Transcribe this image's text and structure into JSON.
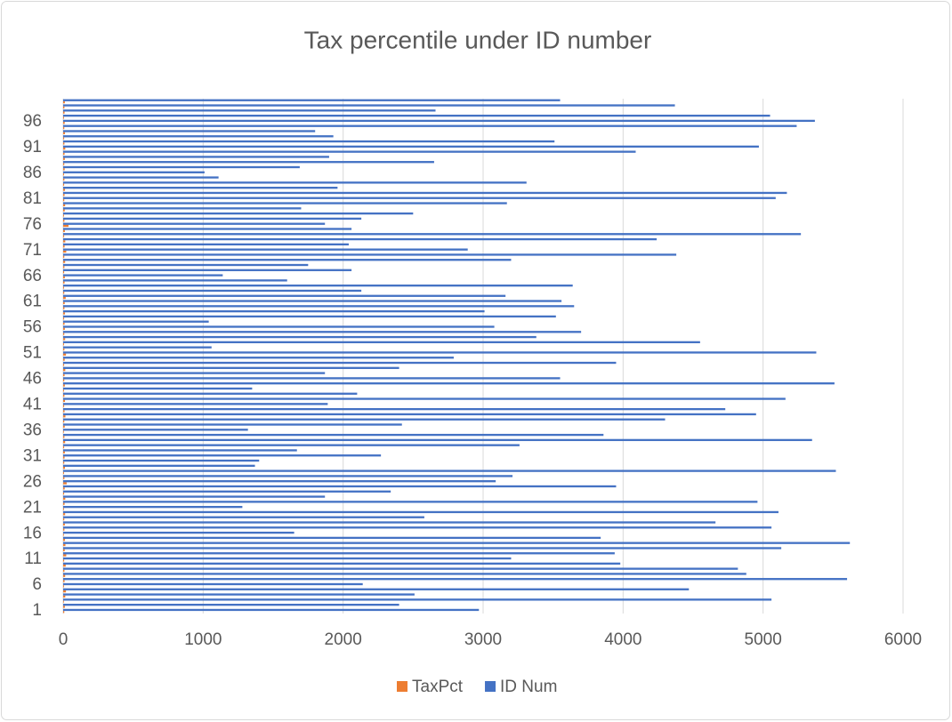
{
  "chart_data": {
    "type": "bar",
    "orientation": "horizontal",
    "title": "Tax percentile under ID number",
    "categories": [
      "1",
      null,
      null,
      null,
      null,
      "6",
      null,
      null,
      null,
      null,
      "11",
      null,
      null,
      null,
      null,
      "16",
      null,
      null,
      null,
      null,
      "21",
      null,
      null,
      null,
      null,
      "26",
      null,
      null,
      null,
      null,
      "31",
      null,
      null,
      null,
      null,
      "36",
      null,
      null,
      null,
      null,
      "41",
      null,
      null,
      null,
      null,
      "46",
      null,
      null,
      null,
      null,
      "51",
      null,
      null,
      null,
      null,
      "56",
      null,
      null,
      null,
      null,
      "61",
      null,
      null,
      null,
      null,
      "66",
      null,
      null,
      null,
      null,
      "71",
      null,
      null,
      null,
      null,
      "76",
      null,
      null,
      null,
      null,
      "81",
      null,
      null,
      null,
      null,
      "86",
      null,
      null,
      null,
      null,
      "91",
      null,
      null,
      null,
      null,
      "96",
      null,
      null,
      null,
      null
    ],
    "series": [
      {
        "name": "TaxPct",
        "color": "#ed7d31",
        "values": [
          8,
          12,
          5,
          15,
          20,
          6,
          10,
          14,
          9,
          18,
          7,
          22,
          11,
          16,
          13,
          5,
          9,
          12,
          8,
          14,
          6,
          10,
          15,
          7,
          11,
          25,
          9,
          6,
          13,
          8,
          10,
          12,
          7,
          14,
          9,
          5,
          11,
          8,
          16,
          10,
          7,
          13,
          9,
          6,
          12,
          8,
          10,
          15,
          7,
          11,
          20,
          9,
          6,
          14,
          8,
          12,
          10,
          7,
          13,
          9,
          11,
          18,
          8,
          6,
          10,
          12,
          7,
          9,
          14,
          8,
          22,
          10,
          15,
          7,
          12,
          38,
          9,
          6,
          11,
          14,
          8,
          10,
          13,
          7,
          9,
          6,
          11,
          8,
          12,
          10,
          15,
          9,
          7,
          13,
          8,
          11,
          6,
          10,
          9,
          12
        ]
      },
      {
        "name": "ID Num",
        "color": "#4472c4",
        "values": [
          2970,
          2400,
          5060,
          2510,
          4470,
          2140,
          5600,
          4880,
          4820,
          3980,
          3200,
          3940,
          5130,
          5620,
          3840,
          1650,
          5060,
          4660,
          2580,
          5110,
          1280,
          4960,
          1870,
          2340,
          3950,
          3090,
          3210,
          5520,
          1370,
          1400,
          2270,
          1670,
          3260,
          5350,
          3860,
          1320,
          2420,
          4300,
          4950,
          4730,
          1890,
          5160,
          2100,
          1350,
          5510,
          3550,
          1870,
          2400,
          3950,
          2790,
          5380,
          1060,
          4550,
          3380,
          3700,
          3080,
          1040,
          3520,
          3010,
          3650,
          3560,
          3160,
          2130,
          3640,
          1600,
          1140,
          2060,
          1750,
          3200,
          4380,
          2890,
          2040,
          4240,
          5270,
          2060,
          1870,
          2130,
          2500,
          1700,
          3170,
          5090,
          5170,
          1960,
          3310,
          1110,
          1010,
          1690,
          2650,
          1900,
          4090,
          4970,
          3510,
          1930,
          1800,
          5240,
          5370,
          5050,
          2660,
          4370,
          3550
        ]
      }
    ],
    "xlim": [
      0,
      6000
    ],
    "xticks": [
      0,
      1000,
      2000,
      3000,
      4000,
      5000,
      6000
    ],
    "grid": true,
    "legend": "bottom"
  }
}
